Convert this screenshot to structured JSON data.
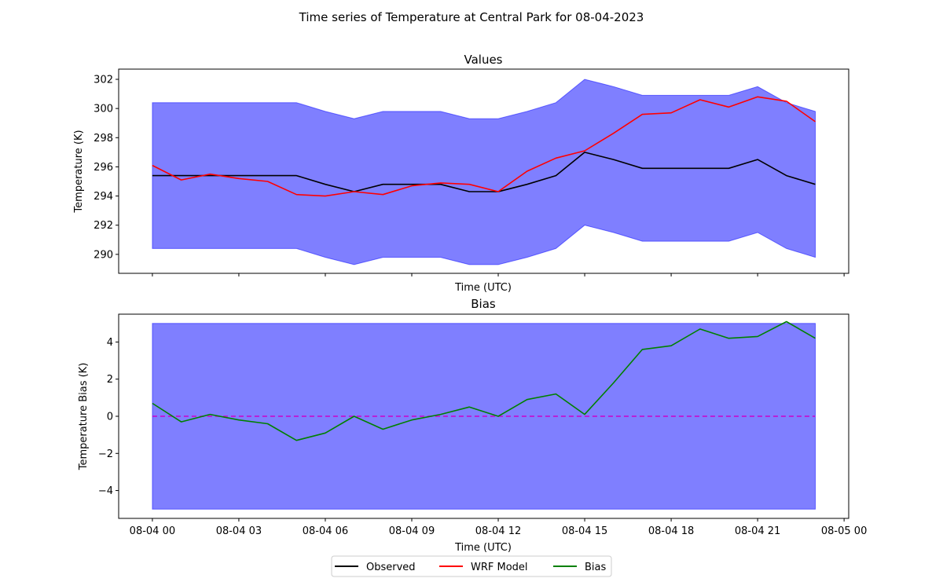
{
  "figure": {
    "title": "Time series of Temperature at Central Park for 08-04-2023"
  },
  "legend": {
    "placement": "bottom-center",
    "items": [
      {
        "label": "Observed",
        "color": "#000000"
      },
      {
        "label": "WRF Model",
        "color": "#ff0000"
      },
      {
        "label": "Bias",
        "color": "#008000"
      }
    ]
  },
  "chart_data": [
    {
      "type": "line",
      "title": "Values",
      "xlabel": "Time (UTC)",
      "ylabel": "Temperature (K)",
      "ylim": [
        288.7,
        302.7
      ],
      "yticks": [
        290,
        292,
        294,
        296,
        298,
        300,
        302
      ],
      "xlim": [
        -1.17,
        24.16
      ],
      "xticks": [
        0,
        3,
        6,
        9,
        12,
        15,
        18,
        21,
        24
      ],
      "xtick_labels_visible": false,
      "shared_x": true,
      "band": {
        "color": "#0000ff",
        "alpha": 0.5,
        "x": [
          0,
          1,
          2,
          3,
          4,
          5,
          6,
          7,
          8,
          9,
          10,
          11,
          12,
          13,
          14,
          15,
          16,
          17,
          18,
          19,
          20,
          21,
          22,
          23
        ],
        "upper": [
          300.4,
          300.4,
          300.4,
          300.4,
          300.4,
          300.4,
          299.8,
          299.3,
          299.8,
          299.8,
          299.8,
          299.3,
          299.3,
          299.8,
          300.4,
          302.0,
          301.5,
          300.9,
          300.9,
          300.9,
          300.9,
          301.5,
          300.4,
          299.8
        ],
        "lower": [
          290.4,
          290.4,
          290.4,
          290.4,
          290.4,
          290.4,
          289.8,
          289.3,
          289.8,
          289.8,
          289.8,
          289.3,
          289.3,
          289.8,
          290.4,
          292.0,
          291.5,
          290.9,
          290.9,
          290.9,
          290.9,
          291.5,
          290.4,
          289.8
        ]
      },
      "series": [
        {
          "name": "Observed",
          "color": "#000000",
          "x": [
            0,
            1,
            2,
            3,
            4,
            5,
            6,
            7,
            8,
            9,
            10,
            11,
            12,
            13,
            14,
            15,
            16,
            17,
            18,
            19,
            20,
            21,
            22,
            23
          ],
          "values": [
            295.4,
            295.4,
            295.4,
            295.4,
            295.4,
            295.4,
            294.8,
            294.3,
            294.8,
            294.8,
            294.8,
            294.3,
            294.3,
            294.8,
            295.4,
            297.0,
            296.5,
            295.9,
            295.9,
            295.9,
            295.9,
            296.5,
            295.4,
            294.8
          ]
        },
        {
          "name": "WRF Model",
          "color": "#ff0000",
          "x": [
            0,
            1,
            2,
            3,
            4,
            5,
            6,
            7,
            8,
            9,
            10,
            11,
            12,
            13,
            14,
            15,
            16,
            17,
            18,
            19,
            20,
            21,
            22,
            23
          ],
          "values": [
            296.1,
            295.1,
            295.5,
            295.2,
            295.0,
            294.1,
            294.0,
            294.3,
            294.1,
            294.7,
            294.9,
            294.8,
            294.3,
            295.7,
            296.6,
            297.1,
            298.3,
            299.6,
            299.7,
            300.6,
            300.1,
            300.8,
            300.5,
            299.1
          ]
        }
      ]
    },
    {
      "type": "line",
      "title": "Bias",
      "xlabel": "Time (UTC)",
      "ylabel": "Temperature Bias (K)",
      "ylim": [
        -5.5,
        5.5
      ],
      "yticks": [
        -4,
        -2,
        0,
        2,
        4
      ],
      "ytick_labels": [
        "−4",
        "−2",
        "0",
        "2",
        "4"
      ],
      "xlim": [
        -1.17,
        24.16
      ],
      "xticks": [
        0,
        3,
        6,
        9,
        12,
        15,
        18,
        21,
        24
      ],
      "xtick_labels": [
        "08-04 00",
        "08-04 03",
        "08-04 06",
        "08-04 09",
        "08-04 12",
        "08-04 15",
        "08-04 18",
        "08-04 21",
        "08-05 00"
      ],
      "band": {
        "color": "#0000ff",
        "alpha": 0.5,
        "x": [
          0,
          23
        ],
        "upper": [
          5,
          5
        ],
        "lower": [
          -5,
          -5
        ]
      },
      "reference_line": {
        "y": 0,
        "color": "#cc00cc",
        "style": "dashed"
      },
      "series": [
        {
          "name": "Bias",
          "color": "#008000",
          "x": [
            0,
            1,
            2,
            3,
            4,
            5,
            6,
            7,
            8,
            9,
            10,
            11,
            12,
            13,
            14,
            15,
            16,
            17,
            18,
            19,
            20,
            21,
            22,
            23
          ],
          "values": [
            0.7,
            -0.3,
            0.1,
            -0.2,
            -0.4,
            -1.3,
            -0.9,
            0.0,
            -0.7,
            -0.2,
            0.1,
            0.5,
            0.0,
            0.9,
            1.2,
            0.1,
            1.8,
            3.6,
            3.8,
            4.7,
            4.2,
            4.3,
            5.1,
            4.2
          ]
        }
      ]
    }
  ]
}
